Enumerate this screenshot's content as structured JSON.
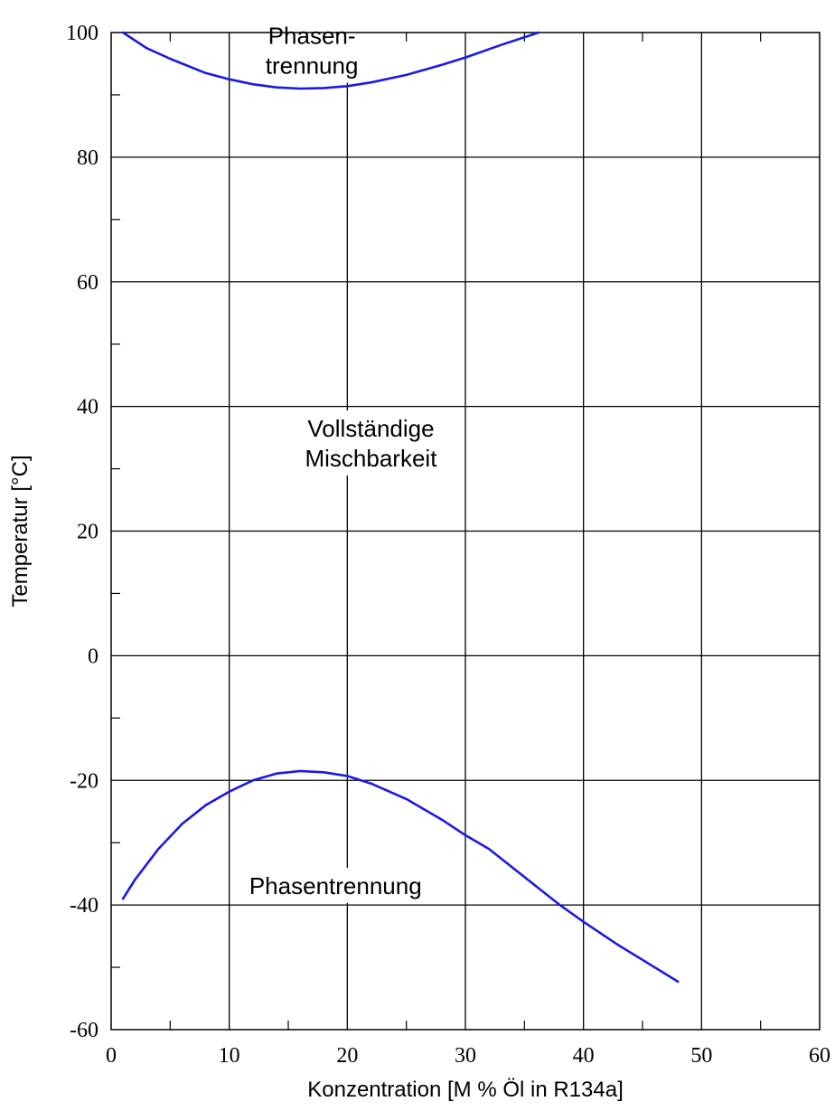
{
  "chart_data": {
    "type": "line",
    "title": "",
    "xlabel": "Konzentration [M % Öl in R134a]",
    "ylabel": "Temperatur [°C]",
    "xlim": [
      0,
      60
    ],
    "ylim": [
      -60,
      100
    ],
    "x_ticks": [
      0,
      10,
      20,
      30,
      40,
      50,
      60
    ],
    "y_ticks": [
      -60,
      -40,
      -20,
      0,
      20,
      40,
      60,
      80,
      100
    ],
    "x_tick_labels": [
      "0",
      "10",
      "20",
      "30",
      "40",
      "50",
      "60"
    ],
    "y_tick_labels": [
      "-60",
      "-40",
      "-20",
      "0",
      "20",
      "40",
      "60",
      "80",
      "100"
    ],
    "grid": true,
    "series": [
      {
        "color": "#1a1ae6",
        "x": [
          1,
          3,
          5,
          8,
          10,
          12,
          14,
          16,
          18,
          20,
          22,
          25,
          28,
          30,
          33,
          36.2
        ],
        "y": [
          100,
          97.5,
          95.8,
          93.5,
          92.5,
          91.7,
          91.2,
          91.0,
          91.1,
          91.4,
          92,
          93.2,
          94.8,
          96,
          98,
          100
        ]
      },
      {
        "color": "#1a1ae6",
        "x": [
          1,
          2,
          4,
          6,
          8,
          10,
          12,
          14,
          16,
          18,
          20,
          22,
          25,
          28,
          30,
          32,
          35,
          38,
          40,
          43,
          45,
          48
        ],
        "y": [
          -39,
          -36,
          -31,
          -27,
          -24,
          -21.8,
          -20,
          -18.9,
          -18.5,
          -18.7,
          -19.3,
          -20.5,
          -23,
          -26.3,
          -28.8,
          -31,
          -35.5,
          -40,
          -42.7,
          -46.5,
          -48.8,
          -52.3
        ]
      }
    ],
    "annotations": [
      {
        "lines": [
          "Phasen-",
          "trennung"
        ],
        "x": 17,
        "y": 97
      },
      {
        "lines": [
          "Vollständige",
          "Mischbarkeit"
        ],
        "x": 22,
        "y": 34
      },
      {
        "lines": [
          "Phasentrennung"
        ],
        "x": 19,
        "y": -37
      }
    ]
  }
}
